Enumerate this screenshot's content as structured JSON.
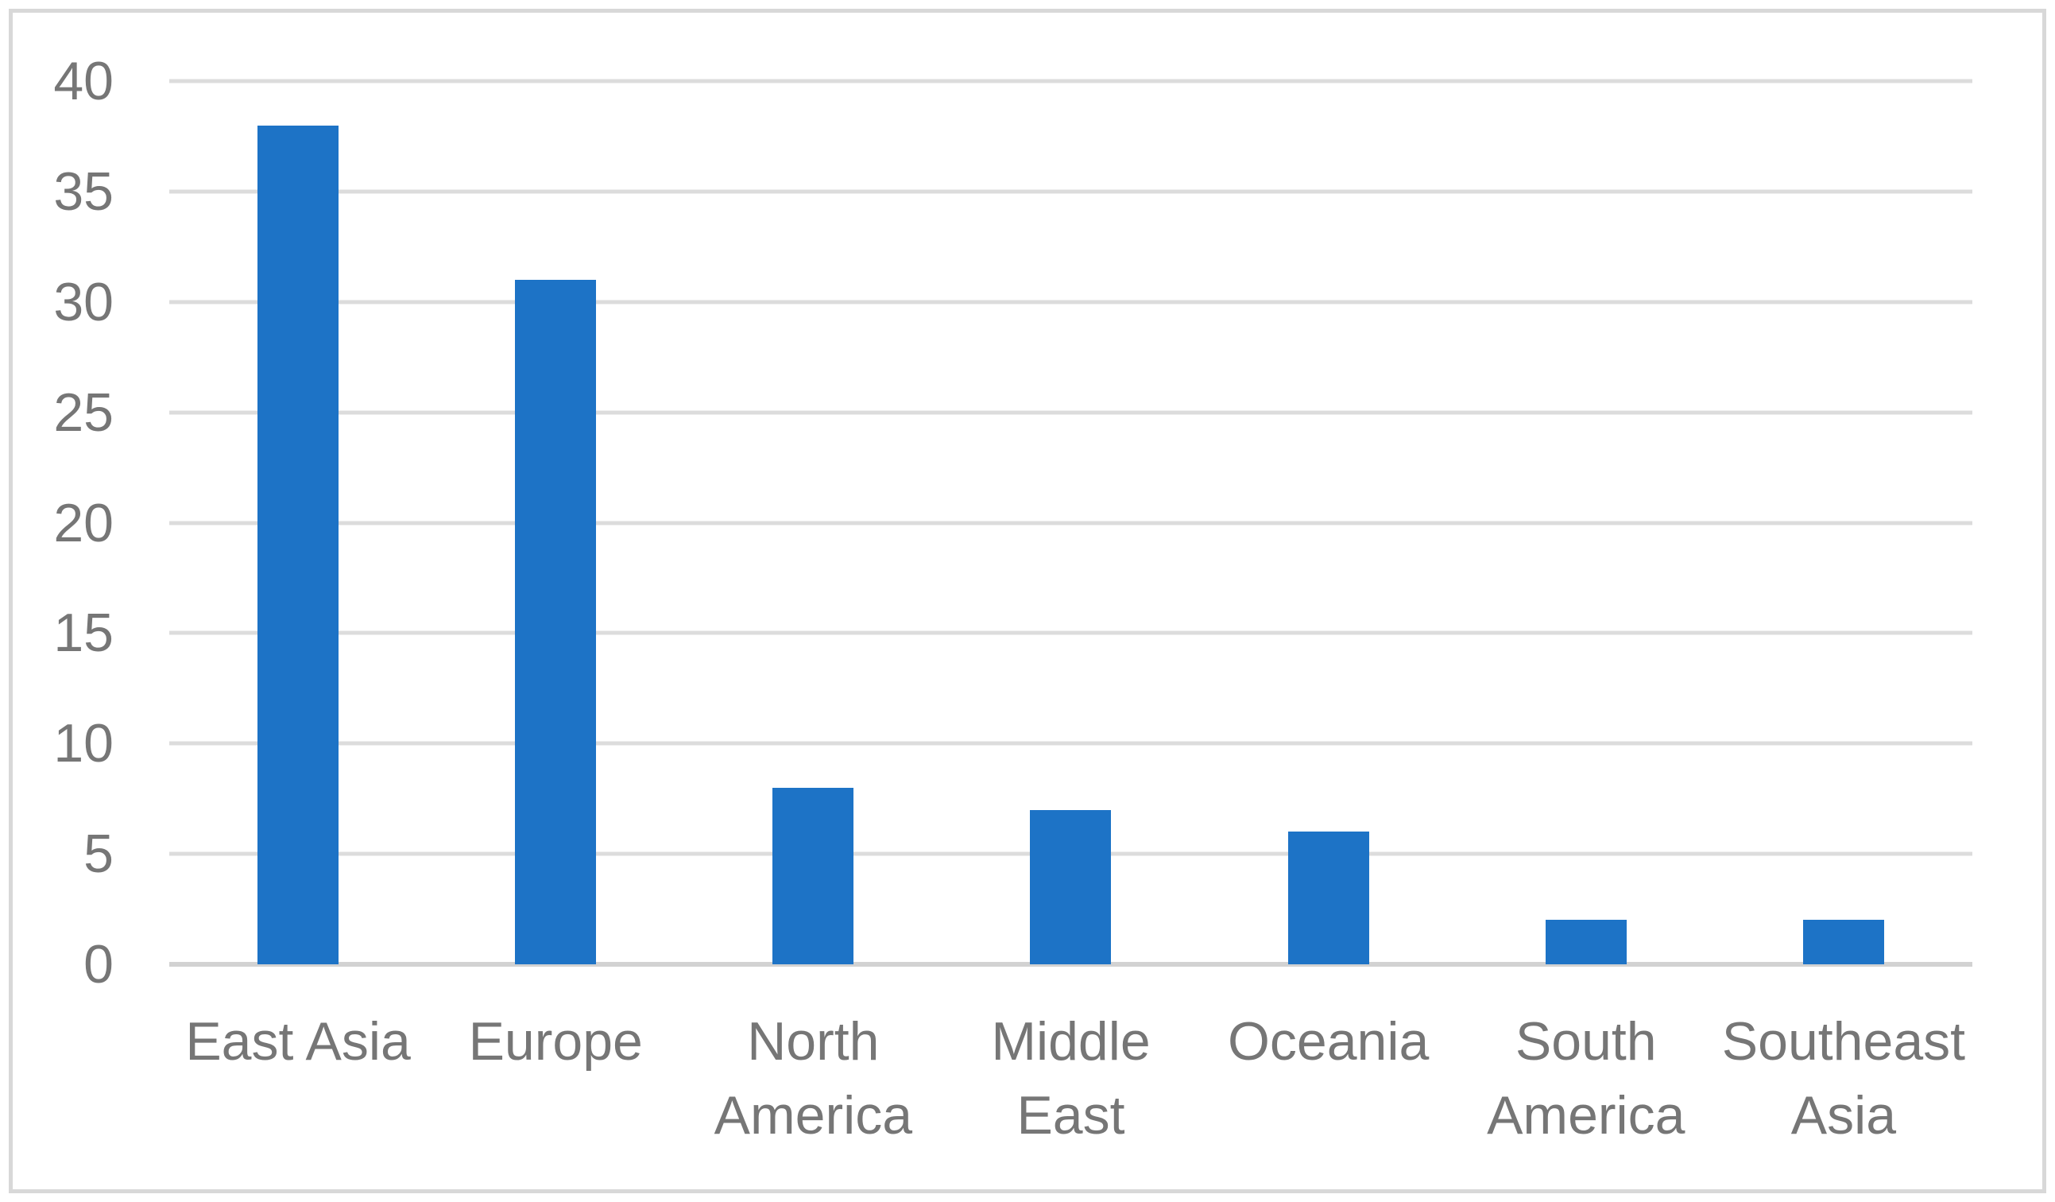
{
  "chart_data": {
    "type": "bar",
    "title": "",
    "xlabel": "",
    "ylabel": "",
    "categories": [
      "East Asia",
      "Europe",
      "North America",
      "Middle East",
      "Oceania",
      "South America",
      "Southeast Asia"
    ],
    "values": [
      38,
      31,
      8,
      7,
      6,
      2,
      2
    ],
    "ylim": [
      0,
      40
    ],
    "yticks": [
      0,
      5,
      10,
      15,
      20,
      25,
      30,
      35,
      40
    ],
    "grid": true,
    "legend": false,
    "colors": {
      "bar": "#1d73c6",
      "gridline": "#dcdcdc",
      "zero_axis_line": "#d2d2d2",
      "tick_label": "#767676",
      "category_label": "#767676",
      "chart_border": "#d8d8d8",
      "background": "#ffffff"
    }
  }
}
